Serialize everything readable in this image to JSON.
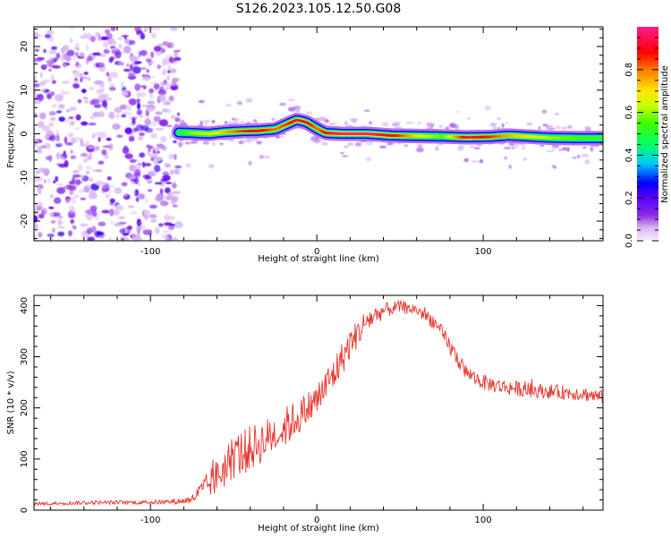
{
  "title": "S126.2023.105.12.50.G08",
  "chart_data": [
    {
      "type": "heatmap",
      "xlabel": "Height of straight line (km)",
      "ylabel": "Frequency (Hz)",
      "xlim": [
        -170,
        172
      ],
      "ylim": [
        -24.5,
        24.5
      ],
      "xticks": [
        -100,
        0,
        100
      ],
      "xtick_labels": [
        "-100",
        "0",
        "100"
      ],
      "yticks": [
        -20,
        -10,
        0,
        10,
        20
      ],
      "ytick_labels": [
        "-20",
        "-10",
        "0",
        "10",
        "20"
      ],
      "colorbar": {
        "label": "Normalized spectral amplitude",
        "range": [
          0,
          1
        ],
        "ticks": [
          0.0,
          0.2,
          0.4,
          0.6,
          0.8
        ],
        "tick_labels": [
          "0.0",
          "0.2",
          "0.4",
          "0.6",
          "0.8"
        ],
        "colormap": "rainbow",
        "colors": [
          "#f4eefc",
          "#d9b8f4",
          "#8a2be2",
          "#5a00ff",
          "#0000ff",
          "#00c8ff",
          "#00ff64",
          "#c8ff00",
          "#ffe600",
          "#ff7800",
          "#ff0000",
          "#ff1a8c"
        ]
      },
      "noise_region_x": [
        -170,
        -83
      ],
      "ridge": {
        "x": [
          -83,
          -75,
          -65,
          -55,
          -45,
          -35,
          -25,
          -18,
          -12,
          -6,
          0,
          5,
          15,
          30,
          45,
          60,
          75,
          90,
          105,
          115,
          125,
          140,
          155,
          172
        ],
        "frequency": [
          0.3,
          0.2,
          0.0,
          0.4,
          0.6,
          0.7,
          1.0,
          2.2,
          3.2,
          2.6,
          1.2,
          0.2,
          0.0,
          0.0,
          -0.4,
          -0.5,
          -0.6,
          -0.8,
          -0.7,
          -0.4,
          -0.6,
          -0.9,
          -1.0,
          -1.0
        ],
        "amplitude": [
          0.5,
          0.6,
          0.65,
          0.75,
          0.85,
          0.9,
          0.8,
          0.85,
          0.95,
          0.9,
          0.8,
          0.9,
          1.0,
          1.0,
          0.9,
          0.7,
          0.55,
          0.95,
          0.85,
          0.75,
          0.7,
          0.6,
          0.55,
          0.5
        ]
      }
    },
    {
      "type": "line",
      "xlabel": "Height of straight line (km)",
      "ylabel": "SNR (10 * v/v)",
      "xlim": [
        -170,
        172
      ],
      "ylim": [
        0,
        420
      ],
      "xticks": [
        -100,
        0,
        100
      ],
      "xtick_labels": [
        "-100",
        "0",
        "100"
      ],
      "yticks": [
        0,
        100,
        200,
        300,
        400
      ],
      "ytick_labels": [
        "0",
        "100",
        "200",
        "300",
        "400"
      ],
      "series": [
        {
          "color": "#e8322a",
          "x": [
            -170,
            -150,
            -130,
            -110,
            -90,
            -80,
            -75,
            -70,
            -60,
            -50,
            -40,
            -30,
            -20,
            -10,
            0,
            10,
            20,
            30,
            40,
            50,
            60,
            70,
            80,
            90,
            100,
            110,
            120,
            130,
            140,
            150,
            160,
            172
          ],
          "y": [
            12,
            14,
            15,
            15,
            16,
            18,
            22,
            35,
            65,
            105,
            120,
            140,
            160,
            185,
            215,
            265,
            325,
            370,
            390,
            398,
            392,
            370,
            320,
            268,
            250,
            242,
            238,
            234,
            232,
            230,
            228,
            220
          ],
          "noise_amplitude": [
            4,
            4,
            4,
            4,
            5,
            6,
            8,
            20,
            35,
            45,
            45,
            40,
            40,
            35,
            35,
            35,
            30,
            25,
            15,
            12,
            12,
            15,
            18,
            15,
            15,
            15,
            15,
            14,
            14,
            14,
            14,
            14
          ]
        }
      ]
    }
  ]
}
